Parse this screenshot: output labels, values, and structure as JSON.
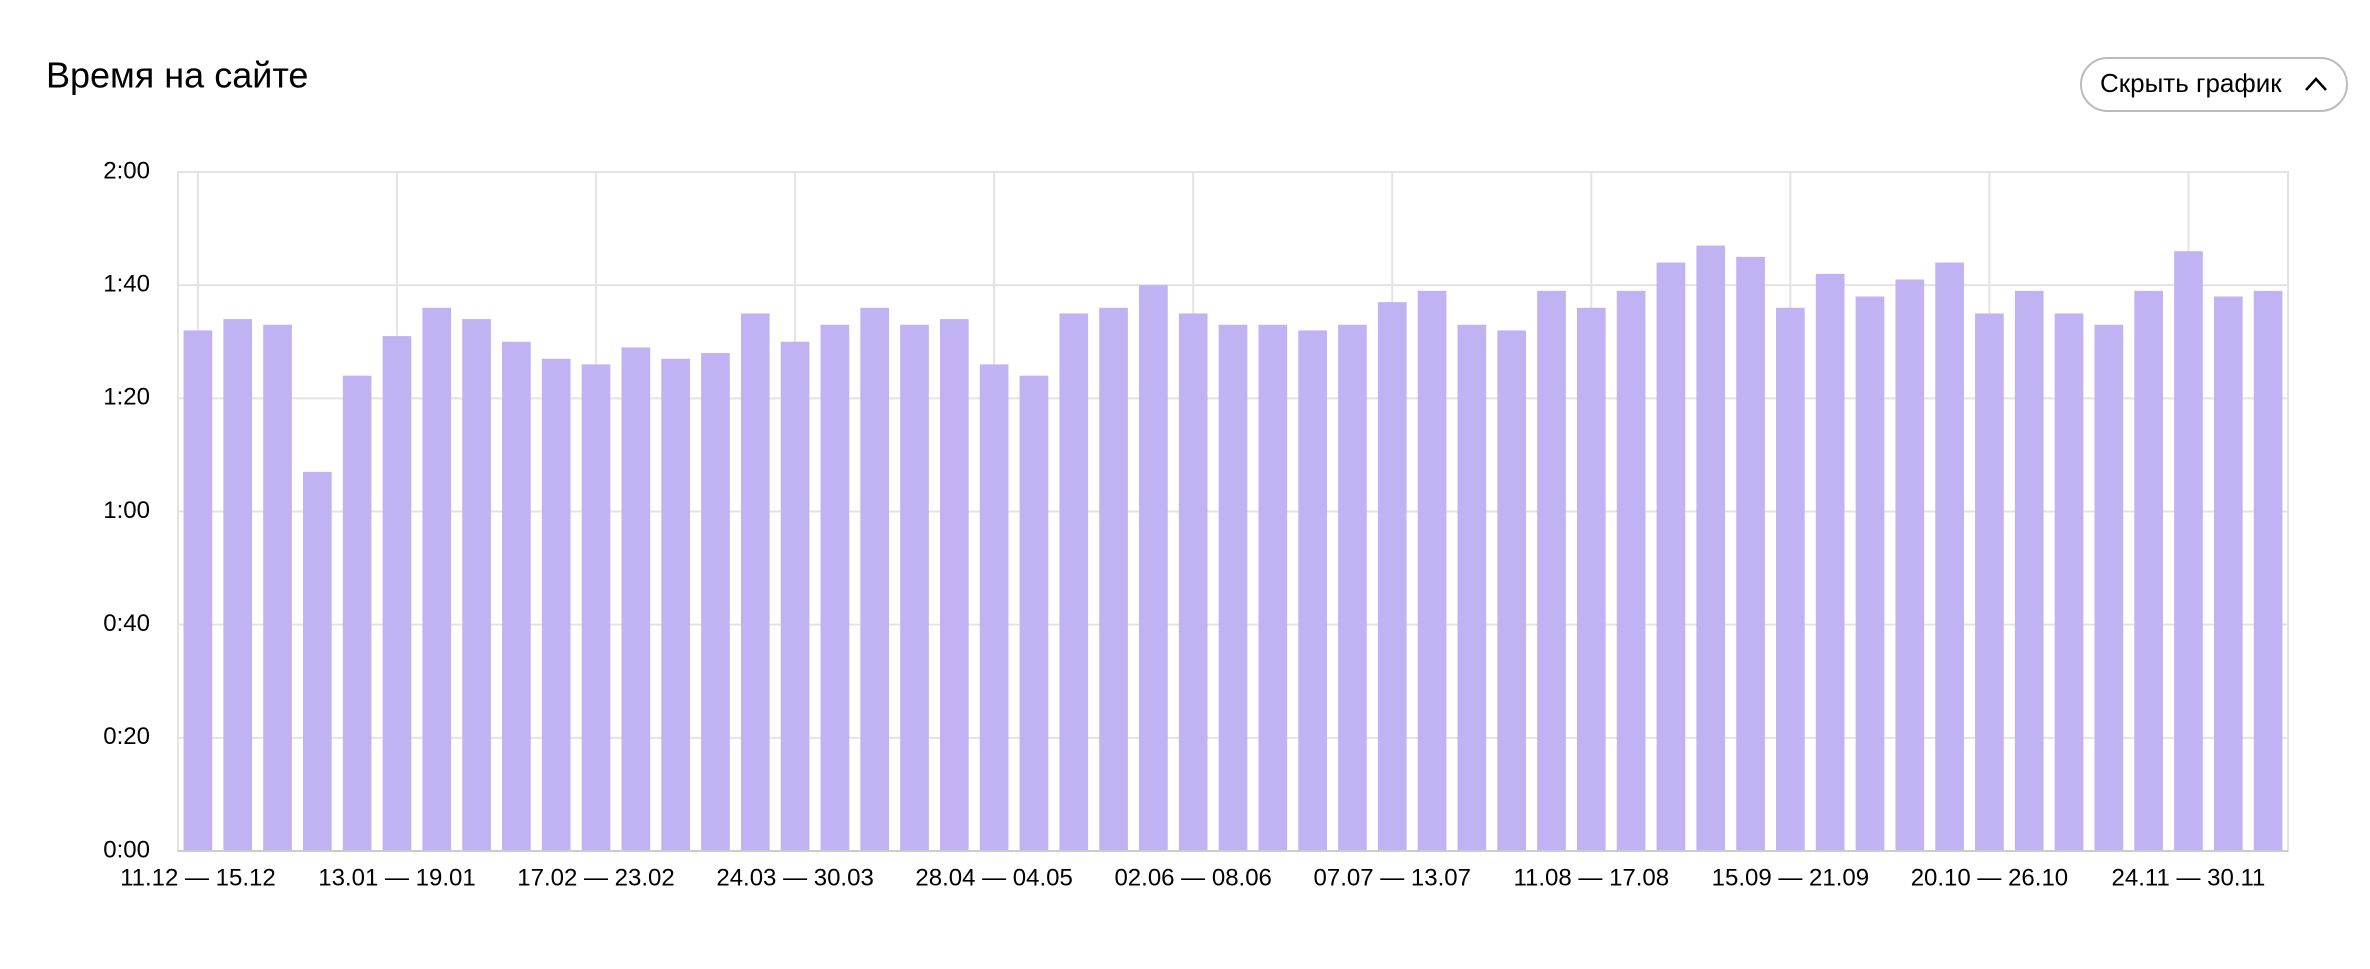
{
  "chart_data": {
    "type": "bar",
    "title": "Время на сайте",
    "button": "Скрыть график",
    "categories": [
      "11.12 — 15.12",
      null,
      null,
      null,
      null,
      "13.01 — 19.01",
      null,
      null,
      null,
      null,
      "17.02 — 23.02",
      null,
      null,
      null,
      null,
      "24.03 — 30.03",
      null,
      null,
      null,
      null,
      "28.04 — 04.05",
      null,
      null,
      null,
      null,
      "02.06 — 08.06",
      null,
      null,
      null,
      null,
      "07.07 — 13.07",
      null,
      null,
      null,
      null,
      "11.08 — 17.08",
      null,
      null,
      null,
      null,
      "15.09 — 21.09",
      null,
      null,
      null,
      null,
      "20.10 — 26.10",
      null,
      null,
      null,
      null,
      "24.11 — 30.11",
      null,
      null
    ],
    "values": [
      92,
      94,
      93,
      67,
      84,
      91,
      96,
      94,
      90,
      87,
      86,
      89,
      87,
      88,
      95,
      90,
      93,
      96,
      93,
      94,
      86,
      84,
      95,
      96,
      100,
      95,
      93,
      93,
      92,
      93,
      97,
      99,
      93,
      92,
      99,
      96,
      99,
      104,
      107,
      105,
      96,
      102,
      98,
      101,
      104,
      95,
      99,
      95,
      93,
      99,
      106,
      98,
      99
    ],
    "color": "#c0b2f3",
    "ylim": [
      0,
      120
    ],
    "yticks": [
      {
        "value": 0,
        "label": "0:00"
      },
      {
        "value": 20,
        "label": "0:20"
      },
      {
        "value": 40,
        "label": "0:40"
      },
      {
        "value": 60,
        "label": "1:00"
      },
      {
        "value": 80,
        "label": "1:20"
      },
      {
        "value": 100,
        "label": "1:40"
      },
      {
        "value": 120,
        "label": "2:00"
      }
    ],
    "grid": true
  }
}
